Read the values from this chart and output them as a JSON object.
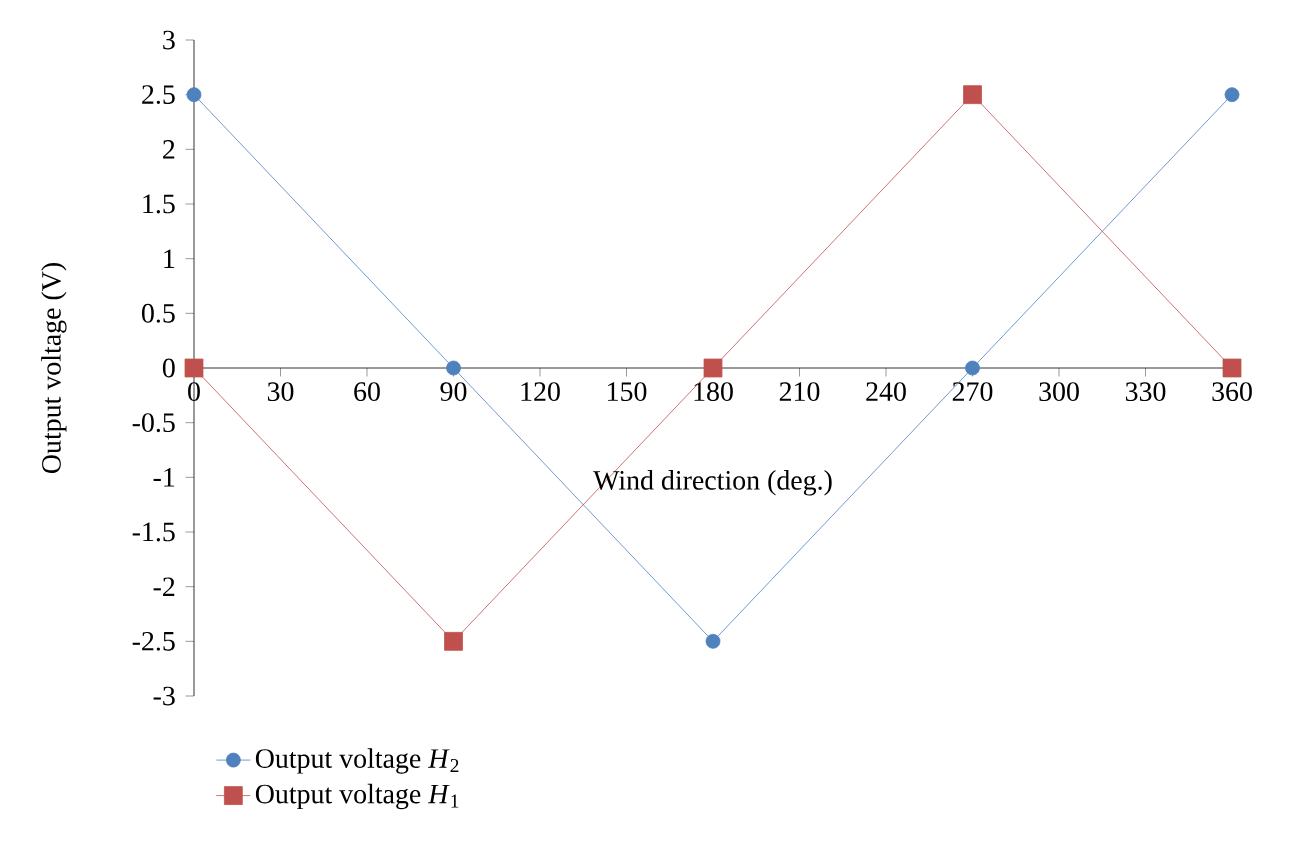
{
  "chart_data": {
    "type": "line",
    "xlabel": "Wind direction (deg.)",
    "ylabel": "Output voltage (V)",
    "x": [
      0,
      90,
      180,
      270,
      360
    ],
    "series": [
      {
        "name": "Output voltage *H*$_{2}$",
        "color": "#4f81bd",
        "marker": "circle",
        "values": [
          2.5,
          0,
          -2.5,
          0,
          2.5
        ]
      },
      {
        "name": "Output voltage *H*$_{1}$",
        "color": "#c0504d",
        "marker": "square",
        "values": [
          0,
          -2.5,
          0,
          2.5,
          0
        ]
      }
    ],
    "xlim": [
      0,
      360
    ],
    "xticks": [
      0,
      30,
      60,
      90,
      120,
      150,
      180,
      210,
      240,
      270,
      300,
      330,
      360
    ],
    "ylim": [
      -3,
      3
    ],
    "yticks": [
      -3,
      -2.5,
      -2,
      -1.5,
      -1,
      -0.5,
      0,
      0.5,
      1,
      1.5,
      2,
      2.5,
      3
    ],
    "grid": false,
    "legend": "bottom left",
    "line_style": "solid"
  }
}
